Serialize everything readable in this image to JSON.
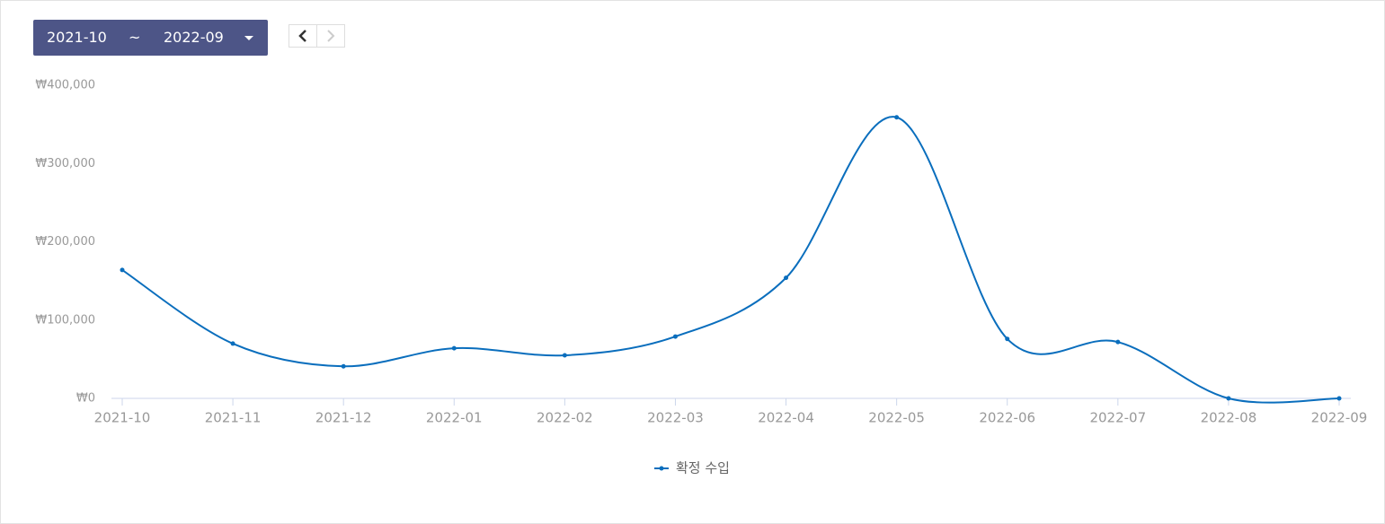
{
  "controls": {
    "start": "2021-10",
    "separator": "~",
    "end": "2022-09"
  },
  "chart_data": {
    "type": "line",
    "categories": [
      "2021-10",
      "2021-11",
      "2021-12",
      "2022-01",
      "2022-02",
      "2022-03",
      "2022-04",
      "2022-05",
      "2022-06",
      "2022-07",
      "2022-08",
      "2022-09"
    ],
    "series": [
      {
        "name": "확정 수입",
        "color": "#0a6ebd",
        "values": [
          164000,
          70000,
          41000,
          64000,
          55000,
          79000,
          154000,
          359000,
          76000,
          72000,
          0,
          0
        ]
      }
    ],
    "ylim": [
      0,
      400000
    ],
    "yticks": [
      {
        "value": 0,
        "label": "₩0"
      },
      {
        "value": 100000,
        "label": "₩100,000"
      },
      {
        "value": 200000,
        "label": "₩200,000"
      },
      {
        "value": 300000,
        "label": "₩300,000"
      },
      {
        "value": 400000,
        "label": "₩400,000"
      }
    ],
    "grid": false,
    "smooth": true,
    "legend": "bottom"
  }
}
